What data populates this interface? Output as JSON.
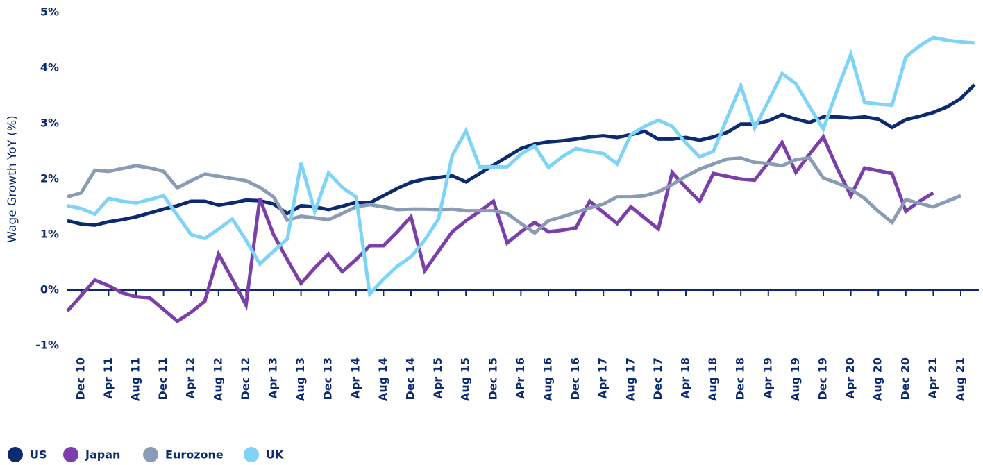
{
  "chart_data": {
    "type": "line",
    "y_label": "Wage Growth YoY (%)",
    "categories": [
      null,
      "Dec 10",
      null,
      "Apr 11",
      null,
      "Aug 11",
      null,
      "Dec 11",
      null,
      "Apr 12",
      null,
      "Aug 12",
      null,
      "Dec 12",
      null,
      "Apr 13",
      null,
      "Aug 13",
      null,
      "Dec 13",
      null,
      "Apr 14",
      null,
      "Aug 14",
      null,
      "Dec 14",
      null,
      "Apr 15",
      null,
      "Aug 15",
      null,
      "Dec 15",
      null,
      "APr 16",
      null,
      "Aug 16",
      null,
      "Dec 16",
      null,
      "Apr 17",
      null,
      "Aug 17",
      null,
      "Dec 17",
      null,
      "Apr 18",
      null,
      "Aug 18",
      null,
      "Dec 18",
      null,
      "Apr 19",
      null,
      "Aug 19",
      null,
      "Dec 19",
      null,
      "Apr 20",
      null,
      "Aug 20",
      null,
      "Dec 20",
      null,
      "Apr 21",
      null,
      "Aug 21",
      null
    ],
    "ylim": [
      -1,
      5
    ],
    "yticks": [
      {
        "value": -1,
        "label": "-1%"
      },
      {
        "value": 0,
        "label": "0%"
      },
      {
        "value": 1,
        "label": "1%"
      },
      {
        "value": 2,
        "label": "2%"
      },
      {
        "value": 3,
        "label": "3%"
      },
      {
        "value": 4,
        "label": "4%"
      },
      {
        "value": 5,
        "label": "5%"
      }
    ],
    "grid": false,
    "legend": "bottom",
    "series": [
      {
        "name": "US",
        "color": "#0b2a6f",
        "values": [
          1.25,
          1.19,
          1.17,
          1.23,
          1.27,
          1.32,
          1.39,
          1.46,
          1.52,
          1.6,
          1.6,
          1.53,
          1.57,
          1.62,
          1.61,
          1.55,
          1.38,
          1.52,
          1.5,
          1.45,
          1.51,
          1.58,
          1.57,
          1.7,
          1.83,
          1.94,
          2.0,
          2.03,
          2.06,
          1.95,
          2.1,
          2.25,
          2.4,
          2.55,
          2.63,
          2.67,
          2.69,
          2.72,
          2.76,
          2.78,
          2.75,
          2.8,
          2.86,
          2.72,
          2.72,
          2.75,
          2.7,
          2.76,
          2.84,
          2.99,
          2.99,
          3.05,
          3.16,
          3.08,
          3.02,
          3.12,
          3.12,
          3.1,
          3.12,
          3.08,
          2.93,
          3.07,
          3.13,
          3.2,
          3.3,
          3.45,
          3.7
        ]
      },
      {
        "name": "Japan",
        "color": "#7b3fa9",
        "values": [
          -0.38,
          -0.1,
          0.18,
          0.08,
          -0.05,
          -0.12,
          -0.14,
          -0.35,
          -0.56,
          -0.4,
          -0.2,
          0.65,
          0.2,
          -0.27,
          1.65,
          1.0,
          0.55,
          0.12,
          0.4,
          0.65,
          0.33,
          0.55,
          0.8,
          0.8,
          1.05,
          1.32,
          0.35,
          0.7,
          1.05,
          1.25,
          1.42,
          1.6,
          0.85,
          1.05,
          1.22,
          1.05,
          1.08,
          1.12,
          1.6,
          1.4,
          1.2,
          1.5,
          1.3,
          1.1,
          2.12,
          1.85,
          1.6,
          2.1,
          2.05,
          2.0,
          1.98,
          2.3,
          2.66,
          2.12,
          2.45,
          2.76,
          2.2,
          1.7,
          2.2,
          2.15,
          2.1,
          1.42,
          1.6,
          1.75,
          null,
          null,
          null
        ]
      },
      {
        "name": "Eurozone",
        "color": "#8a9bb6",
        "values": [
          1.68,
          1.75,
          2.16,
          2.14,
          2.19,
          2.24,
          2.2,
          2.14,
          1.84,
          1.97,
          2.09,
          2.05,
          2.01,
          1.97,
          1.85,
          1.68,
          1.26,
          1.33,
          1.3,
          1.27,
          1.38,
          1.5,
          1.54,
          1.5,
          1.45,
          1.46,
          1.46,
          1.45,
          1.46,
          1.43,
          1.43,
          1.43,
          1.38,
          1.2,
          1.03,
          1.25,
          1.32,
          1.4,
          1.48,
          1.55,
          1.68,
          1.68,
          1.7,
          1.77,
          1.9,
          2.05,
          2.18,
          2.27,
          2.36,
          2.38,
          2.3,
          2.28,
          2.24,
          2.35,
          2.38,
          2.02,
          1.93,
          1.82,
          1.65,
          1.42,
          1.22,
          1.63,
          1.56,
          1.5,
          1.6,
          1.7,
          null
        ]
      },
      {
        "name": "UK",
        "color": "#7dd3f8",
        "values": [
          1.52,
          1.47,
          1.37,
          1.65,
          1.6,
          1.57,
          1.63,
          1.7,
          1.35,
          1.0,
          0.93,
          1.1,
          1.28,
          0.9,
          0.47,
          0.7,
          0.92,
          2.29,
          1.42,
          2.11,
          1.85,
          1.68,
          -0.07,
          0.2,
          0.43,
          0.6,
          0.9,
          1.28,
          2.42,
          2.87,
          2.22,
          2.22,
          2.22,
          2.45,
          2.6,
          2.21,
          2.4,
          2.55,
          2.5,
          2.46,
          2.27,
          2.8,
          2.95,
          3.06,
          2.95,
          2.65,
          2.4,
          2.5,
          3.1,
          3.68,
          2.92,
          3.4,
          3.9,
          3.72,
          3.3,
          2.9,
          3.6,
          4.25,
          3.38,
          3.35,
          3.33,
          4.2,
          4.4,
          4.55,
          4.5,
          4.47,
          4.45
        ]
      }
    ]
  }
}
